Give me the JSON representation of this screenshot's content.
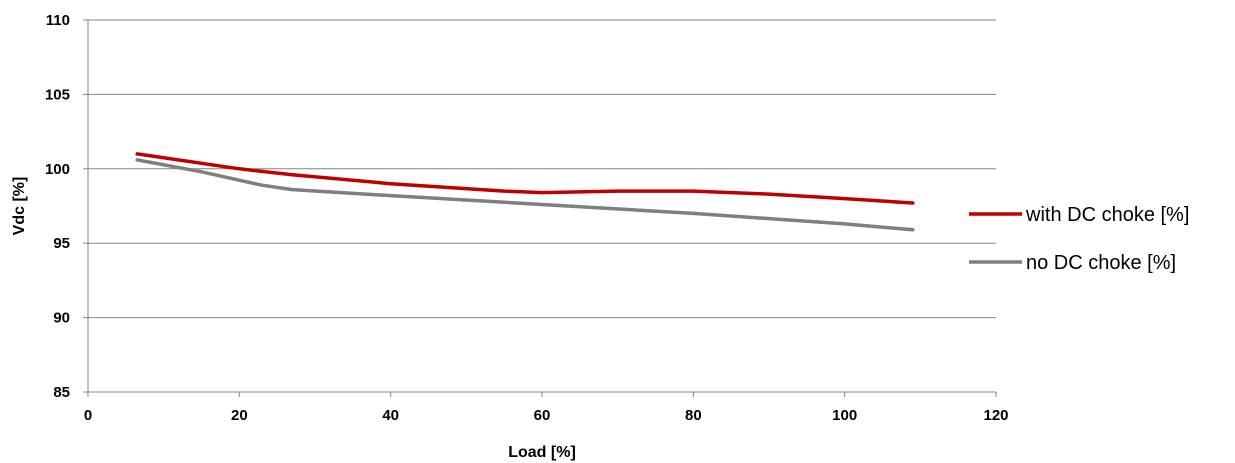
{
  "chart_data": {
    "type": "line",
    "title": "",
    "xlabel": "Load [%]",
    "ylabel": "Vdc [%]",
    "xlim": [
      0,
      120
    ],
    "ylim": [
      85,
      110
    ],
    "x_ticks": [
      "0",
      "20",
      "40",
      "60",
      "80",
      "100",
      "120"
    ],
    "y_ticks": [
      "85",
      "90",
      "95",
      "100",
      "105",
      "110"
    ],
    "grid": "horizontal",
    "legend_position": "right",
    "series": [
      {
        "name": "with DC choke [%]",
        "color": "#C00000",
        "x": [
          6.5,
          20,
          27,
          40,
          55,
          60,
          70,
          80,
          90,
          100,
          109
        ],
        "y": [
          101.0,
          100.0,
          99.6,
          99.0,
          98.5,
          98.4,
          98.5,
          98.5,
          98.3,
          98.0,
          97.7
        ]
      },
      {
        "name": "no DC choke [%]",
        "color": "#7F7F7F",
        "x": [
          6.5,
          15,
          23,
          27,
          40,
          60,
          80,
          100,
          109
        ],
        "y": [
          100.6,
          99.8,
          98.9,
          98.6,
          98.2,
          97.6,
          97.0,
          96.3,
          95.9
        ]
      }
    ]
  }
}
